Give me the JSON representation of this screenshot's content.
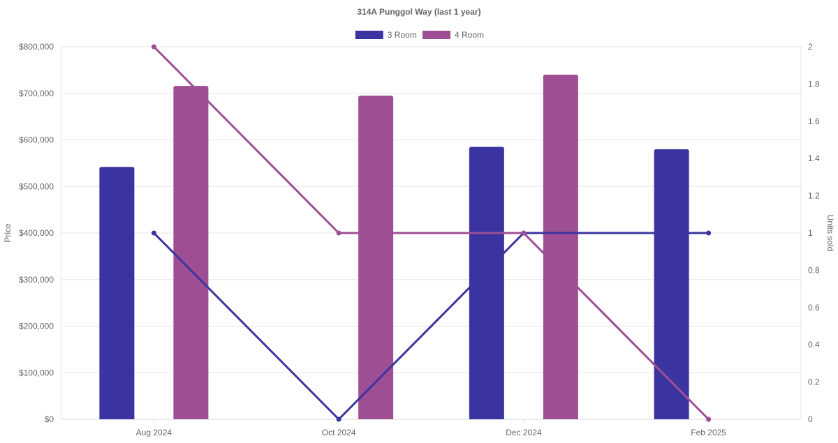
{
  "chart_data": {
    "type": "bar",
    "title": "314A Punggol Way (last 1 year)",
    "categories": [
      "Aug 2024",
      "Oct 2024",
      "Dec 2024",
      "Feb 2025"
    ],
    "series": [
      {
        "name": "3 Room",
        "kind": "bar",
        "axis": "price",
        "color": "#3b34a0",
        "values": [
          542000,
          null,
          585000,
          580000
        ]
      },
      {
        "name": "4 Room",
        "kind": "bar",
        "axis": "price",
        "color": "#9e4f94",
        "values": [
          716000,
          695000,
          740000,
          null
        ]
      },
      {
        "name": "3 Room",
        "kind": "line",
        "axis": "units",
        "color": "#3b34a0",
        "values": [
          1,
          0,
          1,
          1
        ]
      },
      {
        "name": "4 Room",
        "kind": "line",
        "axis": "units",
        "color": "#9e4f94",
        "values": [
          2,
          1,
          1,
          0
        ]
      }
    ],
    "y_left": {
      "label": "Price",
      "min": 0,
      "max": 800000,
      "ticks": [
        "$0",
        "$100,000",
        "$200,000",
        "$300,000",
        "$400,000",
        "$500,000",
        "$600,000",
        "$700,000",
        "$800,000"
      ]
    },
    "y_right": {
      "label": "Units sold",
      "min": 0,
      "max": 2,
      "ticks": [
        "0",
        "0.2",
        "0.4",
        "0.6",
        "0.8",
        "1",
        "1.2",
        "1.4",
        "1.6",
        "1.8",
        "2"
      ]
    },
    "legend": {
      "position": "top-center",
      "entries": [
        {
          "label": "3 Room",
          "color": "#3b34a0"
        },
        {
          "label": "4 Room",
          "color": "#9e4f94"
        }
      ]
    },
    "grid": true
  }
}
